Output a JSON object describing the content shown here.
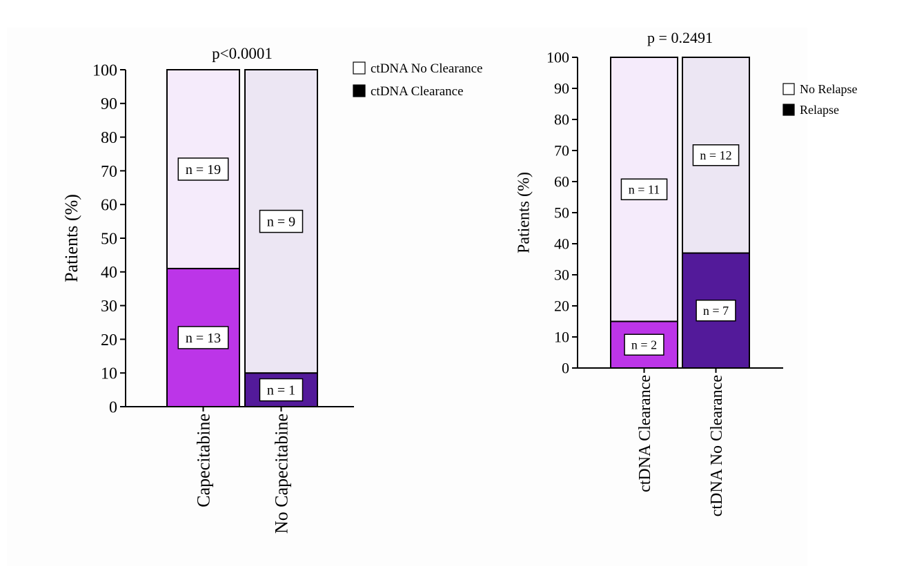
{
  "colors": {
    "capecitabine_clearance": "#bc35e8",
    "capecitabine_noclear": "#f5ebfb",
    "nocapecitabine_clearance": "#531a9a",
    "nocapecitabine_noclear": "#ece6f3",
    "axis": "#000000"
  },
  "chart_data": [
    {
      "type": "bar",
      "stacked": true,
      "title": "p<0.0001",
      "ylabel": "Patients (%)",
      "xlabel": "",
      "ylim": [
        0,
        100
      ],
      "yticks": [
        0,
        10,
        20,
        30,
        40,
        50,
        60,
        70,
        80,
        90,
        100
      ],
      "categories": [
        "Capecitabine",
        "No Capecitabine"
      ],
      "series": [
        {
          "name": "ctDNA Clearance",
          "values": [
            41,
            10
          ],
          "labels": [
            "n = 13",
            "n = 1"
          ]
        },
        {
          "name": "ctDNA No Clearance",
          "values": [
            59,
            90
          ],
          "labels": [
            "n = 19",
            "n = 9"
          ]
        }
      ],
      "legend": [
        "ctDNA No Clearance",
        "ctDNA Clearance"
      ],
      "legend_position": "top-right"
    },
    {
      "type": "bar",
      "stacked": true,
      "title": "p = 0.2491",
      "ylabel": "Patients (%)",
      "xlabel": "",
      "ylim": [
        0,
        100
      ],
      "yticks": [
        0,
        10,
        20,
        30,
        40,
        50,
        60,
        70,
        80,
        90,
        100
      ],
      "categories": [
        "ctDNA Clearance",
        "ctDNA No Clearance"
      ],
      "series": [
        {
          "name": "Relapse",
          "values": [
            15,
            37
          ],
          "labels": [
            "n = 2",
            "n = 7"
          ]
        },
        {
          "name": "No Relapse",
          "values": [
            85,
            63
          ],
          "labels": [
            "n = 11",
            "n = 12"
          ]
        }
      ],
      "legend": [
        "No Relapse",
        "Relapse"
      ],
      "legend_position": "top-right"
    }
  ]
}
